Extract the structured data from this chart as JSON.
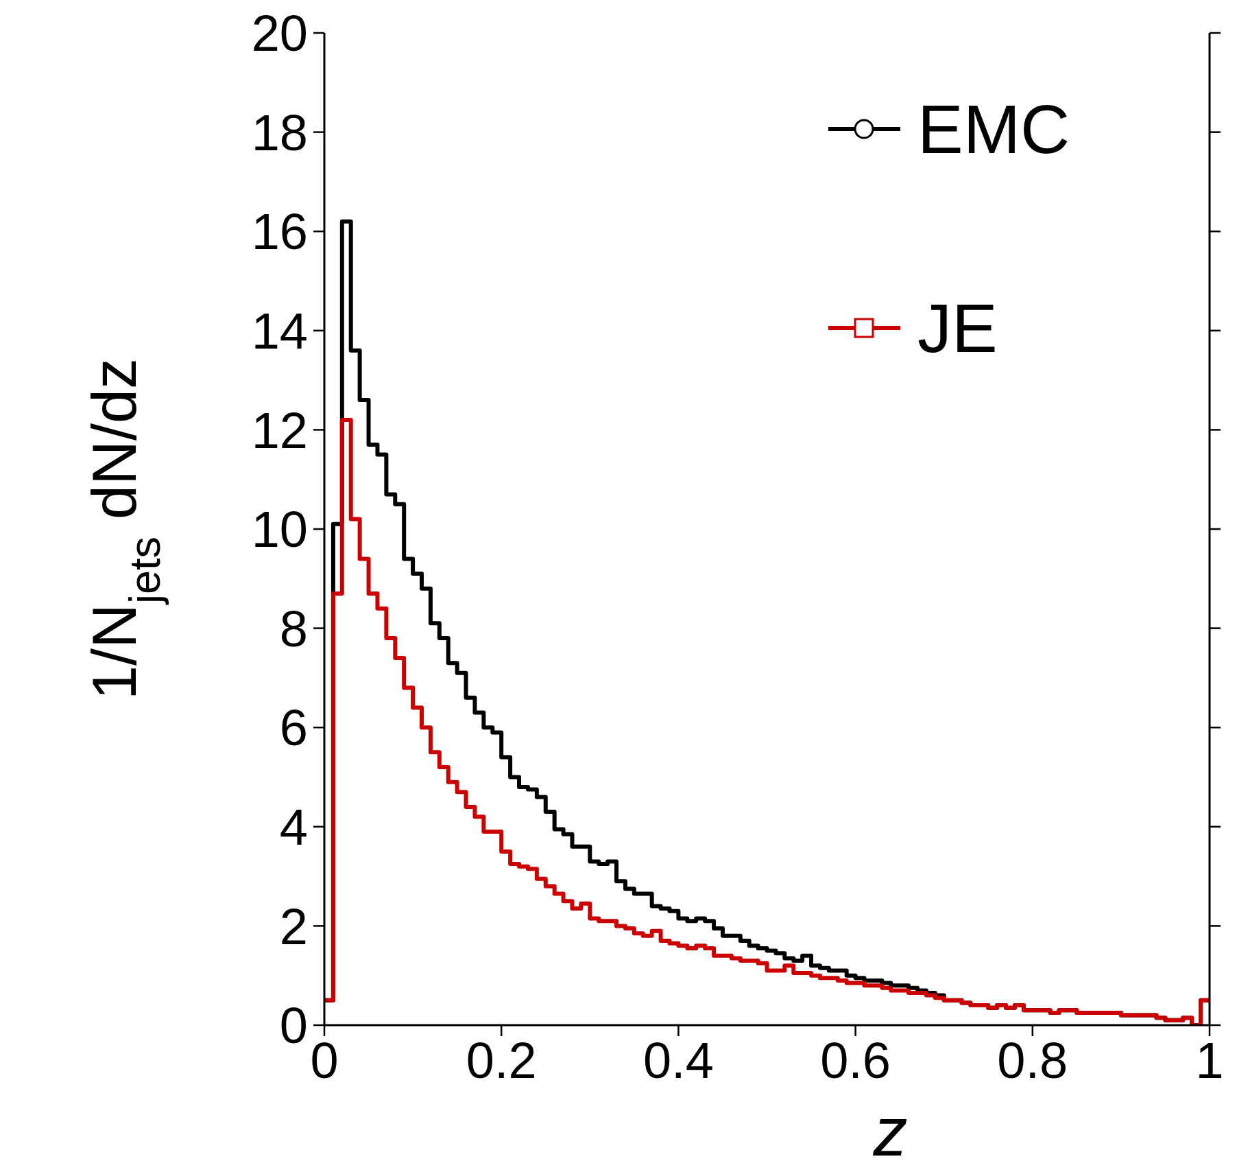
{
  "chart_data": {
    "type": "histogram",
    "xlabel": "z",
    "ylabel": "1/N$_{jets}$ dN/dz",
    "bins": [
      0,
      0.01,
      0.02,
      0.03,
      0.04,
      0.05,
      0.06,
      0.07,
      0.08,
      0.09,
      0.1,
      0.11,
      0.12,
      0.13,
      0.14,
      0.15,
      0.16,
      0.17,
      0.18,
      0.19,
      0.2,
      0.21,
      0.22,
      0.23,
      0.24,
      0.25,
      0.26,
      0.27,
      0.28,
      0.29,
      0.3,
      0.31,
      0.32,
      0.33,
      0.34,
      0.35,
      0.36,
      0.37,
      0.38,
      0.39,
      0.4,
      0.41,
      0.42,
      0.43,
      0.44,
      0.45,
      0.46,
      0.47,
      0.48,
      0.49,
      0.5,
      0.51,
      0.52,
      0.53,
      0.54,
      0.55,
      0.56,
      0.57,
      0.58,
      0.59,
      0.6,
      0.61,
      0.62,
      0.63,
      0.64,
      0.65,
      0.66,
      0.67,
      0.68,
      0.69,
      0.7,
      0.71,
      0.72,
      0.73,
      0.74,
      0.75,
      0.76,
      0.77,
      0.78,
      0.79,
      0.8,
      0.81,
      0.82,
      0.83,
      0.84,
      0.85,
      0.86,
      0.87,
      0.88,
      0.89,
      0.9,
      0.91,
      0.92,
      0.93,
      0.94,
      0.95,
      0.96,
      0.97,
      0.98,
      0.99,
      1
    ],
    "series": [
      {
        "name": "EMC",
        "color": "#000000",
        "marker": "circle",
        "values": [
          0.5,
          10.1,
          16.2,
          13.6,
          12.6,
          11.7,
          11.5,
          10.7,
          10.5,
          9.4,
          9.1,
          8.8,
          8.1,
          7.8,
          7.3,
          7.1,
          6.6,
          6.3,
          6.0,
          5.9,
          5.4,
          5.0,
          4.8,
          4.75,
          4.6,
          4.3,
          3.95,
          3.85,
          3.6,
          3.6,
          3.3,
          3.25,
          3.3,
          2.9,
          2.75,
          2.65,
          2.65,
          2.4,
          2.35,
          2.3,
          2.15,
          2.1,
          2.15,
          2.1,
          1.95,
          1.8,
          1.8,
          1.7,
          1.6,
          1.55,
          1.5,
          1.45,
          1.35,
          1.3,
          1.4,
          1.2,
          1.15,
          1.1,
          1.1,
          1.0,
          0.95,
          0.9,
          0.9,
          0.85,
          0.8,
          0.8,
          0.75,
          0.7,
          0.65,
          0.6,
          0.5,
          0.5,
          0.45,
          0.4,
          0.4,
          0.35,
          0.4,
          0.35,
          0.4,
          0.3,
          0.3,
          0.3,
          0.25,
          0.3,
          0.3,
          0.25,
          0.25,
          0.25,
          0.25,
          0.25,
          0.2,
          0.2,
          0.2,
          0.2,
          0.15,
          0.1,
          0.1,
          0.15,
          0.0,
          0.5
        ]
      },
      {
        "name": "JE",
        "color": "#cc0000",
        "marker": "square",
        "values": [
          0.5,
          8.7,
          12.2,
          10.2,
          9.4,
          8.7,
          8.4,
          7.8,
          7.4,
          6.8,
          6.4,
          6.0,
          5.5,
          5.2,
          4.9,
          4.7,
          4.4,
          4.2,
          3.9,
          3.9,
          3.5,
          3.25,
          3.2,
          3.15,
          2.95,
          2.8,
          2.65,
          2.5,
          2.35,
          2.45,
          2.15,
          2.1,
          2.1,
          2.0,
          1.95,
          1.85,
          1.8,
          1.9,
          1.7,
          1.65,
          1.6,
          1.55,
          1.6,
          1.55,
          1.4,
          1.4,
          1.35,
          1.3,
          1.3,
          1.25,
          1.1,
          1.1,
          1.2,
          1.05,
          1.05,
          1.0,
          0.95,
          0.95,
          0.9,
          0.85,
          0.85,
          0.8,
          0.8,
          0.75,
          0.7,
          0.7,
          0.65,
          0.65,
          0.6,
          0.55,
          0.5,
          0.5,
          0.45,
          0.4,
          0.4,
          0.35,
          0.4,
          0.35,
          0.4,
          0.3,
          0.3,
          0.3,
          0.25,
          0.3,
          0.3,
          0.25,
          0.25,
          0.25,
          0.25,
          0.25,
          0.2,
          0.2,
          0.2,
          0.2,
          0.15,
          0.1,
          0.1,
          0.15,
          0.0,
          0.5
        ]
      }
    ],
    "xlim": [
      0,
      1
    ],
    "xticks": [
      0,
      0.2,
      0.4,
      0.6,
      0.8,
      1
    ],
    "ylim": [
      0,
      20
    ],
    "yticks": [
      0,
      2,
      4,
      6,
      8,
      10,
      12,
      14,
      16,
      18,
      20
    ],
    "legend": "top right"
  }
}
